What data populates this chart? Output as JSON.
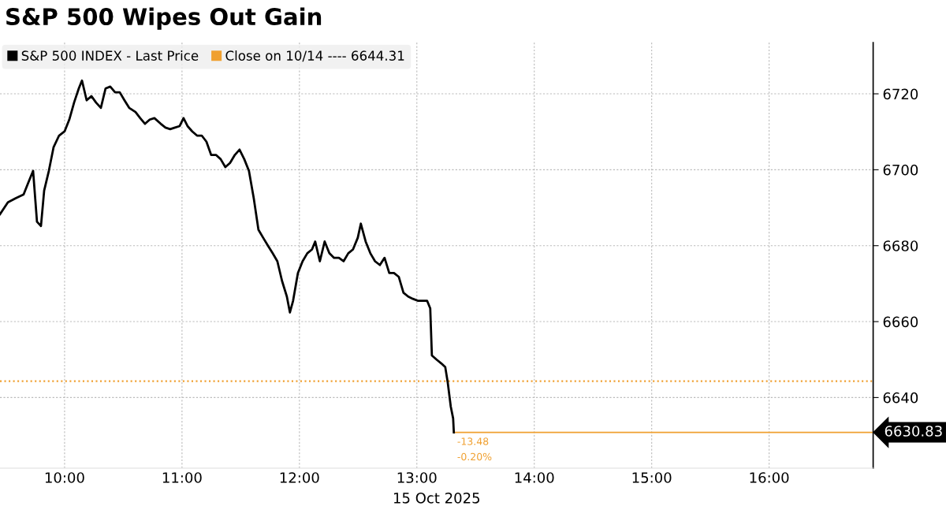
{
  "chart_data": {
    "type": "line",
    "title": "S&P 500 Wipes Out Gain",
    "xlabel": "15 Oct 2025",
    "series": [
      {
        "name": "S&P 500 INDEX - Last Price",
        "color": "#000000",
        "x": [
          9.45,
          9.517,
          9.584,
          9.651,
          9.691,
          9.732,
          9.765,
          9.799,
          9.826,
          9.866,
          9.906,
          9.953,
          10.0,
          10.04,
          10.081,
          10.121,
          10.148,
          10.188,
          10.228,
          10.268,
          10.309,
          10.349,
          10.389,
          10.43,
          10.47,
          10.51,
          10.55,
          10.604,
          10.644,
          10.685,
          10.725,
          10.765,
          10.819,
          10.859,
          10.899,
          10.94,
          10.98,
          11.013,
          11.047,
          11.087,
          11.128,
          11.168,
          11.208,
          11.248,
          11.289,
          11.329,
          11.369,
          11.409,
          11.45,
          11.49,
          11.53,
          11.57,
          11.611,
          11.651,
          11.691,
          11.732,
          11.772,
          11.812,
          11.852,
          11.893,
          11.919,
          11.946,
          11.987,
          12.027,
          12.067,
          12.107,
          12.134,
          12.174,
          12.215,
          12.255,
          12.295,
          12.336,
          12.376,
          12.416,
          12.456,
          12.497,
          12.523,
          12.564,
          12.604,
          12.644,
          12.685,
          12.725,
          12.765,
          12.805,
          12.846,
          12.886,
          12.926,
          12.966,
          13.007,
          13.06,
          13.087,
          13.114,
          13.128,
          13.168,
          13.208,
          13.242,
          13.262,
          13.289,
          13.309,
          13.315
        ],
        "values": [
          6688.3,
          6691.4,
          6692.5,
          6693.5,
          6696.6,
          6699.7,
          6686.3,
          6685.2,
          6694.5,
          6699.7,
          6705.9,
          6709.0,
          6710.1,
          6713.2,
          6717.7,
          6721.4,
          6723.5,
          6718.3,
          6719.4,
          6717.7,
          6716.3,
          6721.4,
          6721.9,
          6720.4,
          6720.4,
          6718.3,
          6716.3,
          6715.2,
          6713.6,
          6712.1,
          6713.2,
          6713.6,
          6712.1,
          6711.1,
          6710.7,
          6711.1,
          6711.5,
          6713.6,
          6711.5,
          6710.1,
          6709.0,
          6709.0,
          6707.4,
          6703.9,
          6703.9,
          6702.8,
          6700.7,
          6701.8,
          6703.9,
          6705.3,
          6702.8,
          6699.7,
          6692.5,
          6684.2,
          6682.1,
          6680.0,
          6678.0,
          6675.9,
          6670.7,
          6666.6,
          6662.4,
          6665.5,
          6672.8,
          6675.9,
          6678.0,
          6679.0,
          6681.1,
          6675.9,
          6681.1,
          6678.0,
          6676.8,
          6676.8,
          6675.9,
          6678.0,
          6679.0,
          6682.1,
          6685.8,
          6681.1,
          6678.0,
          6675.9,
          6674.9,
          6676.8,
          6672.8,
          6672.8,
          6671.8,
          6667.6,
          6666.6,
          6666.0,
          6665.5,
          6665.5,
          6665.5,
          6663.5,
          6651.1,
          6650.0,
          6649.0,
          6648.0,
          6644.2,
          6637.6,
          6634.5,
          6630.83
        ]
      }
    ],
    "xlim": [
      9.45,
      16.886
    ],
    "xticks": [
      {
        "value": 10,
        "label": "10:00"
      },
      {
        "value": 11,
        "label": "11:00"
      },
      {
        "value": 12,
        "label": "12:00"
      },
      {
        "value": 13,
        "label": "13:00"
      },
      {
        "value": 14,
        "label": "14:00"
      },
      {
        "value": 15,
        "label": "15:00"
      },
      {
        "value": 16,
        "label": "16:00"
      }
    ],
    "ylim": [
      6621.4,
      6733.5
    ],
    "yticks": [
      6640,
      6660,
      6680,
      6700,
      6720
    ],
    "ref_lines": [
      {
        "axis": "y",
        "value": 6644.31,
        "label": "Close on 10/14 ---- 6644.31",
        "color": "#f0a030",
        "line_style": "dotted"
      },
      {
        "axis": "y",
        "value": 6630.83,
        "label": "6630.83",
        "color": "#f0a030",
        "line_style": "solid"
      }
    ],
    "annotations": [
      {
        "text": "-13.48",
        "x": 13.315,
        "y": 6630.83
      },
      {
        "text": "-0.20%",
        "x": 13.315,
        "y": 6630.83
      }
    ],
    "grid": true,
    "legend": "top left",
    "marker": "none",
    "line_style": "solid"
  }
}
